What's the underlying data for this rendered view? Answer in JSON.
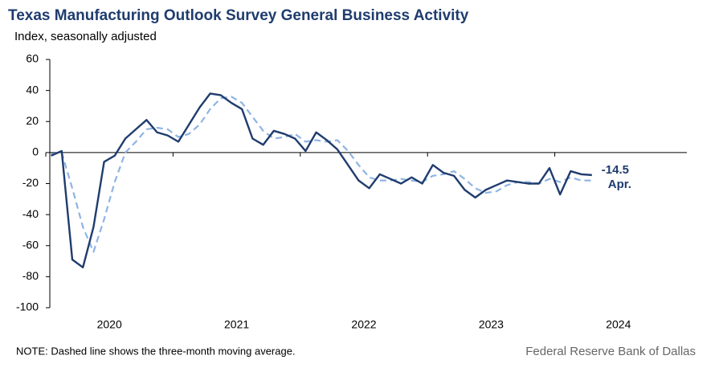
{
  "chart_data": {
    "type": "line",
    "title": "Texas Manufacturing Outlook Survey General Business Activity",
    "subtitle": "Index, seasonally adjusted",
    "note": "NOTE: Dashed line shows the three-month  moving average.",
    "source": "Federal Reserve Bank of Dallas",
    "annotation": "Apr.",
    "categories": [
      "2020",
      null,
      null,
      null,
      null,
      null,
      null,
      null,
      null,
      null,
      null,
      null,
      "2021",
      null,
      null,
      null,
      null,
      null,
      null,
      null,
      null,
      null,
      null,
      null,
      "2022",
      null,
      null,
      null,
      null,
      null,
      null,
      null,
      null,
      null,
      null,
      null,
      "2023",
      null,
      null,
      null,
      null,
      null,
      null,
      null,
      null,
      null,
      null,
      null,
      "2024",
      null,
      null,
      null,
      null,
      null,
      null,
      null,
      null,
      null,
      null,
      null
    ],
    "series": [
      {
        "name": "General Business Activity",
        "color": "#1f3c6e",
        "dashed": false,
        "values": [
          -2,
          1,
          -69,
          -74,
          -48,
          -6,
          -2,
          9,
          15,
          21,
          13,
          11,
          7,
          18,
          29,
          38,
          37,
          32,
          28,
          9,
          5,
          14,
          12,
          9,
          1,
          13,
          8,
          2,
          -8,
          -18,
          -23,
          -14,
          -17,
          -20,
          -16,
          -20,
          -8,
          -13,
          -15,
          -24,
          -29,
          -24,
          -21,
          -18,
          -19,
          -20,
          -20,
          -10,
          -27,
          -12,
          -14,
          -14.5,
          null,
          null,
          null,
          null,
          null,
          null,
          null,
          null
        ]
      },
      {
        "name": "Three-month moving average",
        "color": "#8fb4e3",
        "dashed": true,
        "values": [
          -1,
          0,
          -23,
          -48,
          -64,
          -43,
          -19,
          0,
          7,
          15,
          16,
          15,
          10,
          12,
          18,
          28,
          35,
          36,
          32,
          23,
          14,
          9,
          10,
          12,
          7,
          8,
          7,
          8,
          1,
          -8,
          -16,
          -18,
          -18,
          -17,
          -18,
          -19,
          -15,
          -14,
          -12,
          -17,
          -23,
          -26,
          -25,
          -21,
          -19,
          -19,
          -20,
          -17,
          -19,
          -16,
          -18,
          -18,
          null,
          null,
          null,
          null,
          null,
          null,
          null,
          null
        ]
      }
    ],
    "ylim": [
      -100,
      60
    ],
    "yticks": [
      -100,
      -80,
      -60,
      -40,
      -20,
      0,
      20,
      40,
      60
    ]
  }
}
